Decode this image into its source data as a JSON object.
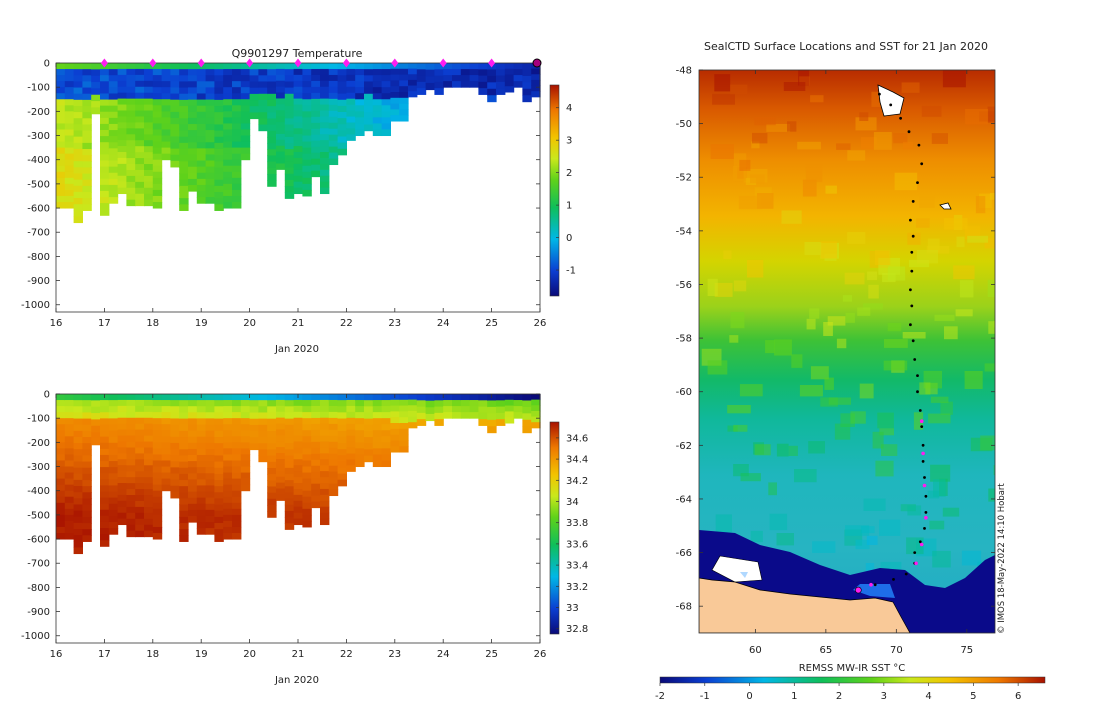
{
  "chart_data": [
    {
      "type": "heatmap",
      "title": "Q9901297  Temperature",
      "xlabel": "Jan 2020",
      "ylabel": "",
      "xlim": [
        16,
        26
      ],
      "ylim": [
        -1030,
        0
      ],
      "x_ticks": [
        "16",
        "17",
        "18",
        "19",
        "20",
        "21",
        "22",
        "23",
        "24",
        "25",
        "26"
      ],
      "y_ticks": [
        "0",
        "-100",
        "-200",
        "-300",
        "-400",
        "-500",
        "-600",
        "-700",
        "-800",
        "-900",
        "-1000"
      ],
      "colorbar_ticks": [
        "4",
        "3",
        "2",
        "1",
        "0",
        "-1"
      ],
      "colorbar_range": [
        -1.8,
        4.7
      ],
      "daily_markers": [
        17,
        18,
        19,
        20,
        21,
        22,
        23,
        24,
        25,
        26
      ],
      "profile_depth_m": [
        600,
        600,
        660,
        610,
        210,
        630,
        580,
        540,
        590,
        590,
        590,
        600,
        400,
        430,
        610,
        530,
        580,
        580,
        610,
        600,
        600,
        400,
        230,
        280,
        510,
        440,
        560,
        540,
        550,
        470,
        540,
        420,
        380,
        320,
        300,
        280,
        300,
        300,
        240,
        240,
        140,
        130,
        110,
        130,
        100,
        100,
        100,
        100,
        130,
        160,
        130,
        120,
        100,
        160,
        140
      ]
    },
    {
      "type": "heatmap",
      "title": "",
      "xlabel": "Jan 2020",
      "ylabel": "",
      "xlim": [
        16,
        26
      ],
      "ylim": [
        -1030,
        0
      ],
      "x_ticks": [
        "16",
        "17",
        "18",
        "19",
        "20",
        "21",
        "22",
        "23",
        "24",
        "25",
        "26"
      ],
      "y_ticks": [
        "0",
        "-100",
        "-200",
        "-300",
        "-400",
        "-500",
        "-600",
        "-700",
        "-800",
        "-900",
        "-1000"
      ],
      "colorbar_ticks": [
        "34.6",
        "34.4",
        "34.2",
        "34",
        "33.8",
        "33.6",
        "33.4",
        "33.2",
        "33",
        "32.8"
      ],
      "colorbar_range": [
        32.75,
        34.75
      ]
    },
    {
      "type": "heatmap",
      "title": "SealCTD Surface Locations and SST for 21 Jan 2020",
      "xlabel": "",
      "ylabel": "",
      "xlim": [
        56,
        77
      ],
      "ylim": [
        -69,
        -48
      ],
      "x_ticks": [
        "60",
        "65",
        "70",
        "75"
      ],
      "y_ticks": [
        "-48",
        "-50",
        "-52",
        "-54",
        "-56",
        "-58",
        "-60",
        "-62",
        "-64",
        "-66",
        "-68"
      ],
      "colorbar_label": "REMSS MW-IR SST °C",
      "colorbar_ticks": [
        "-2",
        "-1",
        "0",
        "1",
        "2",
        "3",
        "4",
        "5",
        "6"
      ],
      "colorbar_range": [
        -2,
        6.6
      ],
      "credit": "© IMOS 18-May-2022 14:10 Hobart",
      "track": [
        [
          68.8,
          -48.9
        ],
        [
          69.6,
          -49.3
        ],
        [
          70.3,
          -49.8
        ],
        [
          70.9,
          -50.3
        ],
        [
          71.6,
          -50.8
        ],
        [
          71.8,
          -51.5
        ],
        [
          71.5,
          -52.2
        ],
        [
          71.2,
          -52.9
        ],
        [
          71.0,
          -53.6
        ],
        [
          71.2,
          -54.2
        ],
        [
          71.1,
          -54.8
        ],
        [
          71.1,
          -55.5
        ],
        [
          71.0,
          -56.2
        ],
        [
          71.1,
          -56.8
        ],
        [
          71.0,
          -57.5
        ],
        [
          71.2,
          -58.1
        ],
        [
          71.3,
          -58.8
        ],
        [
          71.5,
          -59.4
        ],
        [
          71.5,
          -60.0
        ],
        [
          71.7,
          -60.7
        ],
        [
          71.8,
          -61.3
        ],
        [
          71.9,
          -62.0
        ],
        [
          71.9,
          -62.6
        ],
        [
          72.0,
          -63.2
        ],
        [
          72.1,
          -63.9
        ],
        [
          72.1,
          -64.5
        ],
        [
          72.0,
          -65.1
        ],
        [
          71.7,
          -65.6
        ],
        [
          71.3,
          -66.0
        ],
        [
          71.3,
          -66.4
        ],
        [
          70.7,
          -66.8
        ],
        [
          69.8,
          -67.0
        ],
        [
          68.5,
          -67.2
        ],
        [
          67.3,
          -67.4
        ]
      ],
      "magenta_points": [
        [
          71.8,
          -61.1
        ],
        [
          71.9,
          -62.3
        ],
        [
          72.0,
          -63.5
        ],
        [
          72.1,
          -64.7
        ],
        [
          71.8,
          -65.7
        ],
        [
          71.4,
          -66.4
        ],
        [
          68.2,
          -67.2
        ],
        [
          67.3,
          -67.4
        ]
      ]
    }
  ]
}
